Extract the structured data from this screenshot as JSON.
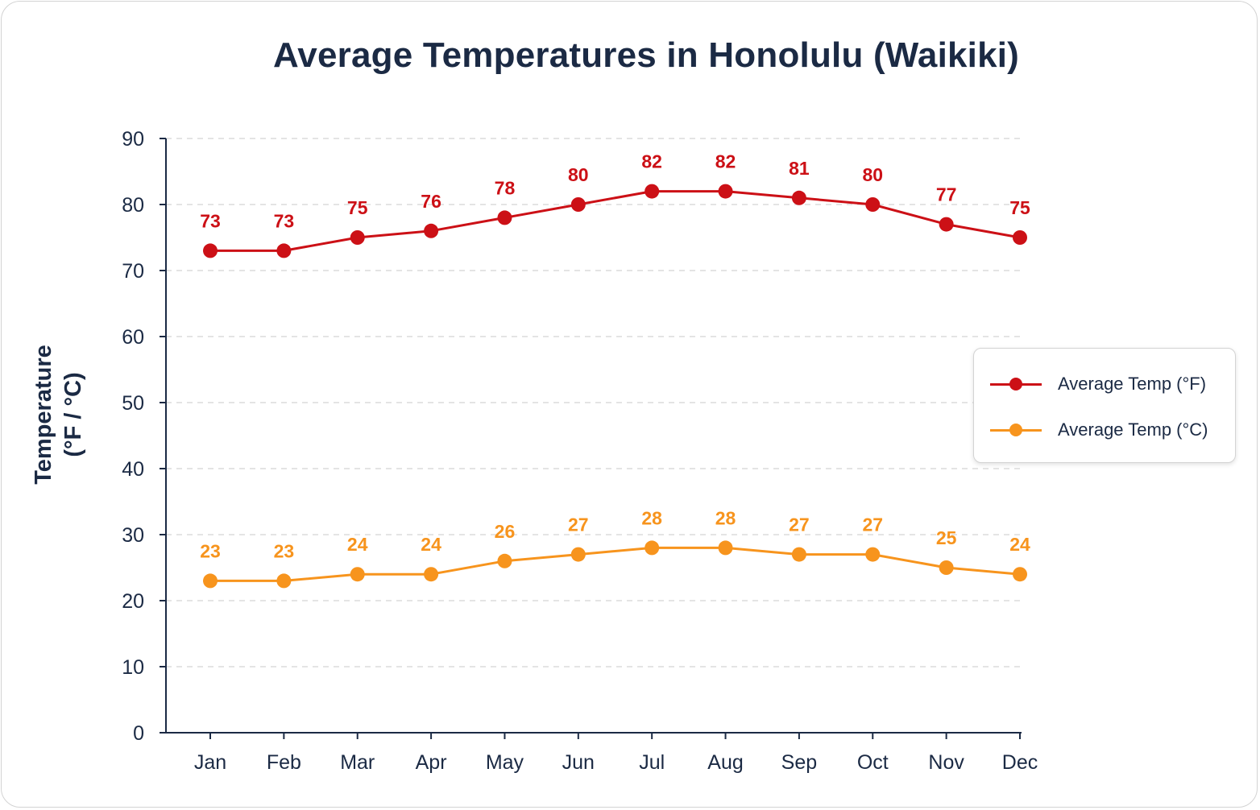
{
  "chart_data": {
    "type": "line",
    "title": "Average Temperatures in Honolulu (Waikiki)",
    "xlabel": "",
    "ylabel": [
      "Temperature",
      "(°F / °C)"
    ],
    "categories": [
      "Jan",
      "Feb",
      "Mar",
      "Apr",
      "May",
      "Jun",
      "Jul",
      "Aug",
      "Sep",
      "Oct",
      "Nov",
      "Dec"
    ],
    "ylim": [
      0,
      90
    ],
    "yticks": [
      0,
      10,
      20,
      30,
      40,
      50,
      60,
      70,
      80,
      90
    ],
    "grid": true,
    "legend_position": "right",
    "series": [
      {
        "name": "Average Temp (°F)",
        "color": "#cc1016",
        "values": [
          73,
          73,
          75,
          76,
          78,
          80,
          82,
          82,
          81,
          80,
          77,
          75
        ]
      },
      {
        "name": "Average Temp (°C)",
        "color": "#f7941d",
        "values": [
          23,
          23,
          24,
          24,
          26,
          27,
          28,
          28,
          27,
          27,
          25,
          24
        ]
      }
    ]
  }
}
